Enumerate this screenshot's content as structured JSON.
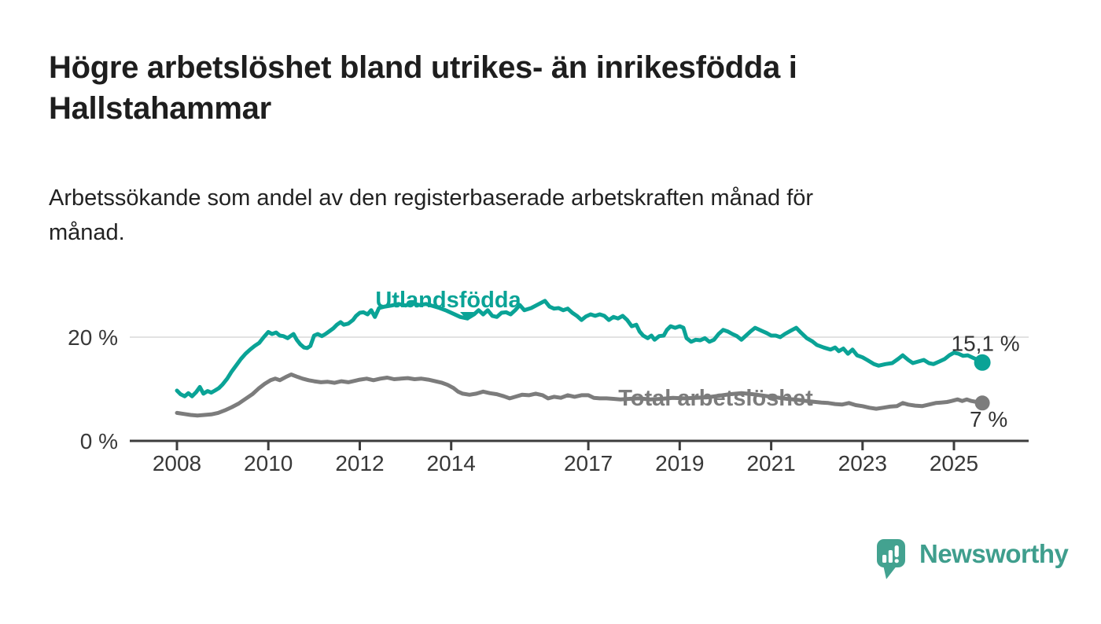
{
  "title_lines": [
    "Högre arbetslöshet bland utrikes- än inrikesfödda i",
    "Hallstahammar"
  ],
  "subtitle_lines": [
    "Arbetssökande som andel av den registerbaserade arbetskraften månad för",
    "månad."
  ],
  "branding": {
    "logo_text": "Newsworthy",
    "logo_color": "#3f9e8d",
    "logo_icon": "speech-bubble-bar-chart"
  },
  "chart_data": {
    "type": "line",
    "unit": "%",
    "title": "Högre arbetslöshet bland utrikes- än inrikesfödda i Hallstahammar",
    "xlabel": "",
    "ylabel": "",
    "xlim": [
      2007.6,
      2026.3
    ],
    "ylim": [
      0,
      30
    ],
    "grid": "horizontal-20-only",
    "x_ticks": [
      "2008",
      "2010",
      "2012",
      "2014",
      "2017",
      "2019",
      "2021",
      "2023",
      "2025"
    ],
    "x_tick_years": [
      2008,
      2010,
      2012,
      2014,
      2017,
      2019,
      2021,
      2023,
      2025
    ],
    "y_ticks": [
      {
        "value": 0,
        "label": "0 %"
      },
      {
        "value": 20,
        "label": "20 %"
      }
    ],
    "gridline_color": "#d9d9d9",
    "axis_color": "#3c3c3c",
    "label_color": "#383838",
    "series": [
      {
        "name": "Utlandsfödda",
        "color": "#0aa396",
        "end_value_label": "15,1 %",
        "last_value": 15.1,
        "points": [
          [
            2008.0,
            9.7
          ],
          [
            2008.08,
            9.0
          ],
          [
            2008.17,
            8.6
          ],
          [
            2008.25,
            9.2
          ],
          [
            2008.33,
            8.6
          ],
          [
            2008.42,
            9.4
          ],
          [
            2008.5,
            10.4
          ],
          [
            2008.58,
            9.1
          ],
          [
            2008.67,
            9.6
          ],
          [
            2008.75,
            9.3
          ],
          [
            2008.83,
            9.7
          ],
          [
            2008.92,
            10.2
          ],
          [
            2009.0,
            10.9
          ],
          [
            2009.1,
            12.0
          ],
          [
            2009.2,
            13.4
          ],
          [
            2009.3,
            14.6
          ],
          [
            2009.4,
            15.8
          ],
          [
            2009.5,
            16.8
          ],
          [
            2009.6,
            17.6
          ],
          [
            2009.7,
            18.3
          ],
          [
            2009.8,
            18.9
          ],
          [
            2009.9,
            20.0
          ],
          [
            2010.0,
            21.0
          ],
          [
            2010.08,
            20.6
          ],
          [
            2010.17,
            20.9
          ],
          [
            2010.25,
            20.3
          ],
          [
            2010.33,
            20.2
          ],
          [
            2010.42,
            19.8
          ],
          [
            2010.5,
            20.3
          ],
          [
            2010.55,
            20.6
          ],
          [
            2010.62,
            19.5
          ],
          [
            2010.7,
            18.6
          ],
          [
            2010.78,
            18.0
          ],
          [
            2010.85,
            17.9
          ],
          [
            2010.92,
            18.3
          ],
          [
            2011.0,
            20.3
          ],
          [
            2011.08,
            20.6
          ],
          [
            2011.17,
            20.2
          ],
          [
            2011.25,
            20.6
          ],
          [
            2011.33,
            21.1
          ],
          [
            2011.42,
            21.7
          ],
          [
            2011.5,
            22.4
          ],
          [
            2011.58,
            22.9
          ],
          [
            2011.65,
            22.4
          ],
          [
            2011.75,
            22.6
          ],
          [
            2011.85,
            23.3
          ],
          [
            2011.92,
            24.1
          ],
          [
            2012.0,
            24.7
          ],
          [
            2012.08,
            24.8
          ],
          [
            2012.17,
            24.4
          ],
          [
            2012.25,
            25.2
          ],
          [
            2012.33,
            23.9
          ],
          [
            2012.42,
            25.6
          ],
          [
            2012.55,
            25.9
          ],
          [
            2012.7,
            26.1
          ],
          [
            2012.85,
            26.4
          ],
          [
            2013.0,
            26.1
          ],
          [
            2013.15,
            26.5
          ],
          [
            2013.3,
            26.2
          ],
          [
            2013.45,
            26.4
          ],
          [
            2013.6,
            26.0
          ],
          [
            2013.75,
            25.6
          ],
          [
            2013.9,
            25.1
          ],
          [
            2014.05,
            24.5
          ],
          [
            2014.2,
            23.9
          ],
          [
            2014.35,
            23.6
          ],
          [
            2014.5,
            24.4
          ],
          [
            2014.6,
            25.2
          ],
          [
            2014.7,
            24.4
          ],
          [
            2014.8,
            25.2
          ],
          [
            2014.9,
            24.1
          ],
          [
            2015.0,
            23.9
          ],
          [
            2015.1,
            24.7
          ],
          [
            2015.2,
            24.8
          ],
          [
            2015.3,
            24.4
          ],
          [
            2015.4,
            25.2
          ],
          [
            2015.5,
            26.2
          ],
          [
            2015.6,
            25.2
          ],
          [
            2015.75,
            25.6
          ],
          [
            2015.9,
            26.3
          ],
          [
            2016.05,
            27.0
          ],
          [
            2016.15,
            25.9
          ],
          [
            2016.25,
            25.5
          ],
          [
            2016.35,
            25.6
          ],
          [
            2016.45,
            25.2
          ],
          [
            2016.55,
            25.5
          ],
          [
            2016.65,
            24.7
          ],
          [
            2016.75,
            24.1
          ],
          [
            2016.85,
            23.3
          ],
          [
            2016.95,
            24.0
          ],
          [
            2017.05,
            24.4
          ],
          [
            2017.15,
            24.1
          ],
          [
            2017.25,
            24.4
          ],
          [
            2017.35,
            24.1
          ],
          [
            2017.45,
            23.3
          ],
          [
            2017.55,
            23.9
          ],
          [
            2017.65,
            23.6
          ],
          [
            2017.75,
            24.1
          ],
          [
            2017.85,
            23.3
          ],
          [
            2017.95,
            22.1
          ],
          [
            2018.05,
            22.4
          ],
          [
            2018.12,
            21.1
          ],
          [
            2018.2,
            20.3
          ],
          [
            2018.3,
            19.8
          ],
          [
            2018.38,
            20.3
          ],
          [
            2018.45,
            19.5
          ],
          [
            2018.55,
            20.2
          ],
          [
            2018.65,
            20.3
          ],
          [
            2018.72,
            21.4
          ],
          [
            2018.8,
            22.1
          ],
          [
            2018.9,
            21.8
          ],
          [
            2019.0,
            22.1
          ],
          [
            2019.08,
            21.8
          ],
          [
            2019.15,
            19.8
          ],
          [
            2019.25,
            19.1
          ],
          [
            2019.35,
            19.5
          ],
          [
            2019.45,
            19.4
          ],
          [
            2019.55,
            19.8
          ],
          [
            2019.65,
            19.1
          ],
          [
            2019.75,
            19.5
          ],
          [
            2019.85,
            20.6
          ],
          [
            2019.95,
            21.4
          ],
          [
            2020.05,
            21.1
          ],
          [
            2020.15,
            20.6
          ],
          [
            2020.25,
            20.2
          ],
          [
            2020.35,
            19.5
          ],
          [
            2020.45,
            20.3
          ],
          [
            2020.55,
            21.1
          ],
          [
            2020.65,
            21.8
          ],
          [
            2020.8,
            21.2
          ],
          [
            2020.9,
            20.8
          ],
          [
            2021.0,
            20.3
          ],
          [
            2021.1,
            20.3
          ],
          [
            2021.2,
            20.0
          ],
          [
            2021.3,
            20.6
          ],
          [
            2021.42,
            21.2
          ],
          [
            2021.55,
            21.8
          ],
          [
            2021.65,
            20.9
          ],
          [
            2021.78,
            19.8
          ],
          [
            2021.9,
            19.2
          ],
          [
            2022.0,
            18.5
          ],
          [
            2022.15,
            18.0
          ],
          [
            2022.3,
            17.6
          ],
          [
            2022.4,
            18.0
          ],
          [
            2022.48,
            17.3
          ],
          [
            2022.58,
            17.8
          ],
          [
            2022.68,
            16.8
          ],
          [
            2022.78,
            17.6
          ],
          [
            2022.88,
            16.5
          ],
          [
            2023.0,
            16.1
          ],
          [
            2023.1,
            15.6
          ],
          [
            2023.25,
            14.8
          ],
          [
            2023.35,
            14.5
          ],
          [
            2023.5,
            14.8
          ],
          [
            2023.65,
            15.0
          ],
          [
            2023.78,
            15.8
          ],
          [
            2023.88,
            16.5
          ],
          [
            2024.0,
            15.6
          ],
          [
            2024.1,
            15.0
          ],
          [
            2024.22,
            15.3
          ],
          [
            2024.34,
            15.6
          ],
          [
            2024.45,
            15.0
          ],
          [
            2024.55,
            14.8
          ],
          [
            2024.68,
            15.3
          ],
          [
            2024.8,
            15.8
          ],
          [
            2024.9,
            16.5
          ],
          [
            2025.0,
            17.0
          ],
          [
            2025.1,
            16.8
          ],
          [
            2025.2,
            16.4
          ],
          [
            2025.3,
            16.5
          ],
          [
            2025.42,
            16.0
          ],
          [
            2025.52,
            15.6
          ],
          [
            2025.62,
            15.1
          ]
        ]
      },
      {
        "name": "Total arbetslöshet",
        "color": "#7c7c7c",
        "end_value_label": "7 %",
        "last_value": 7,
        "points": [
          [
            2008.0,
            5.4
          ],
          [
            2008.15,
            5.2
          ],
          [
            2008.3,
            5.0
          ],
          [
            2008.45,
            4.9
          ],
          [
            2008.6,
            5.0
          ],
          [
            2008.75,
            5.1
          ],
          [
            2008.9,
            5.4
          ],
          [
            2009.05,
            5.9
          ],
          [
            2009.2,
            6.5
          ],
          [
            2009.35,
            7.2
          ],
          [
            2009.5,
            8.1
          ],
          [
            2009.65,
            9.0
          ],
          [
            2009.8,
            10.2
          ],
          [
            2009.92,
            11.0
          ],
          [
            2010.05,
            11.7
          ],
          [
            2010.15,
            12.0
          ],
          [
            2010.25,
            11.7
          ],
          [
            2010.38,
            12.3
          ],
          [
            2010.5,
            12.8
          ],
          [
            2010.62,
            12.4
          ],
          [
            2010.75,
            12.0
          ],
          [
            2010.88,
            11.7
          ],
          [
            2011.0,
            11.5
          ],
          [
            2011.15,
            11.3
          ],
          [
            2011.3,
            11.4
          ],
          [
            2011.45,
            11.2
          ],
          [
            2011.6,
            11.5
          ],
          [
            2011.75,
            11.3
          ],
          [
            2011.9,
            11.6
          ],
          [
            2012.0,
            11.8
          ],
          [
            2012.15,
            12.0
          ],
          [
            2012.3,
            11.7
          ],
          [
            2012.45,
            12.0
          ],
          [
            2012.6,
            12.2
          ],
          [
            2012.75,
            11.9
          ],
          [
            2012.9,
            12.0
          ],
          [
            2013.05,
            12.1
          ],
          [
            2013.2,
            11.9
          ],
          [
            2013.35,
            12.0
          ],
          [
            2013.5,
            11.8
          ],
          [
            2013.65,
            11.5
          ],
          [
            2013.8,
            11.2
          ],
          [
            2013.92,
            10.8
          ],
          [
            2014.05,
            10.2
          ],
          [
            2014.15,
            9.5
          ],
          [
            2014.25,
            9.1
          ],
          [
            2014.4,
            8.9
          ],
          [
            2014.55,
            9.1
          ],
          [
            2014.7,
            9.5
          ],
          [
            2014.85,
            9.2
          ],
          [
            2015.0,
            9.0
          ],
          [
            2015.15,
            8.6
          ],
          [
            2015.28,
            8.2
          ],
          [
            2015.4,
            8.5
          ],
          [
            2015.55,
            8.9
          ],
          [
            2015.7,
            8.8
          ],
          [
            2015.85,
            9.1
          ],
          [
            2016.0,
            8.8
          ],
          [
            2016.12,
            8.2
          ],
          [
            2016.25,
            8.5
          ],
          [
            2016.4,
            8.3
          ],
          [
            2016.55,
            8.8
          ],
          [
            2016.7,
            8.5
          ],
          [
            2016.85,
            8.8
          ],
          [
            2017.0,
            8.8
          ],
          [
            2017.12,
            8.3
          ],
          [
            2017.25,
            8.2
          ],
          [
            2017.4,
            8.2
          ],
          [
            2017.55,
            8.1
          ],
          [
            2017.7,
            8.0
          ],
          [
            2017.9,
            8.1
          ],
          [
            2018.1,
            8.2
          ],
          [
            2018.35,
            8.0
          ],
          [
            2018.6,
            8.1
          ],
          [
            2018.85,
            8.3
          ],
          [
            2019.1,
            8.2
          ],
          [
            2019.35,
            8.3
          ],
          [
            2019.6,
            8.4
          ],
          [
            2019.85,
            8.7
          ],
          [
            2020.1,
            9.0
          ],
          [
            2020.35,
            9.2
          ],
          [
            2020.6,
            9.0
          ],
          [
            2020.85,
            8.7
          ],
          [
            2021.1,
            8.4
          ],
          [
            2021.35,
            8.1
          ],
          [
            2021.6,
            7.9
          ],
          [
            2021.85,
            7.6
          ],
          [
            2022.1,
            7.4
          ],
          [
            2022.25,
            7.3
          ],
          [
            2022.4,
            7.1
          ],
          [
            2022.55,
            7.0
          ],
          [
            2022.7,
            7.3
          ],
          [
            2022.85,
            6.9
          ],
          [
            2023.0,
            6.7
          ],
          [
            2023.15,
            6.4
          ],
          [
            2023.3,
            6.2
          ],
          [
            2023.45,
            6.4
          ],
          [
            2023.6,
            6.6
          ],
          [
            2023.75,
            6.7
          ],
          [
            2023.88,
            7.3
          ],
          [
            2024.0,
            7.0
          ],
          [
            2024.15,
            6.8
          ],
          [
            2024.3,
            6.7
          ],
          [
            2024.45,
            7.0
          ],
          [
            2024.6,
            7.3
          ],
          [
            2024.72,
            7.4
          ],
          [
            2024.85,
            7.5
          ],
          [
            2024.95,
            7.7
          ],
          [
            2025.08,
            8.0
          ],
          [
            2025.18,
            7.7
          ],
          [
            2025.28,
            8.0
          ],
          [
            2025.38,
            7.7
          ],
          [
            2025.5,
            7.5
          ],
          [
            2025.62,
            7.3
          ]
        ]
      }
    ]
  }
}
